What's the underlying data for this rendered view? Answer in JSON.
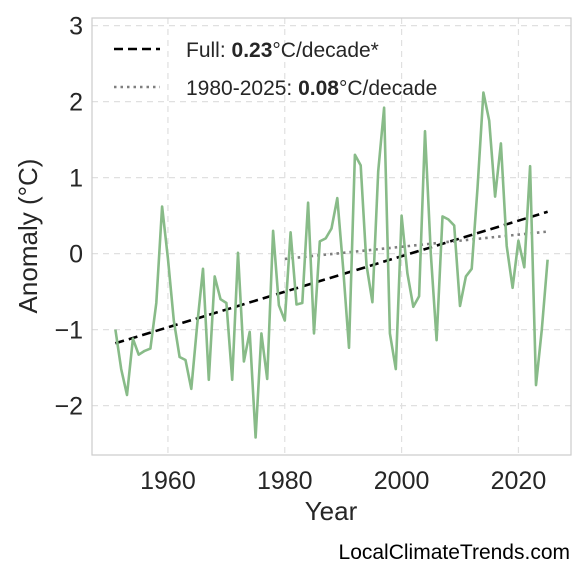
{
  "chart_data": {
    "type": "line",
    "xlabel": "Year",
    "ylabel": "Anomaly (°C)",
    "xlim": [
      1947,
      2029
    ],
    "ylim": [
      -2.65,
      3.1
    ],
    "xticks": [
      1960,
      1980,
      2000,
      2020
    ],
    "yticks": [
      3,
      2,
      1,
      0,
      -1,
      -2
    ],
    "ytick_labels": [
      "3",
      "2",
      "1",
      "0",
      "−1",
      "−2"
    ],
    "grid": true,
    "legend_position": "top-left",
    "legend": [
      {
        "prefix": "Full: ",
        "value": "0.23",
        "suffix": "°C/decade*",
        "style": "dashed",
        "color": "#000000"
      },
      {
        "prefix": "1980-2025: ",
        "value": "0.08",
        "suffix": "°C/decade",
        "style": "dotted",
        "color": "#7f7f7f"
      }
    ],
    "series": [
      {
        "color": "#88bb88",
        "x": [
          1951,
          1952,
          1953,
          1954,
          1955,
          1956,
          1957,
          1958,
          1959,
          1960,
          1961,
          1962,
          1963,
          1964,
          1965,
          1966,
          1967,
          1968,
          1969,
          1970,
          1971,
          1972,
          1973,
          1974,
          1975,
          1976,
          1977,
          1978,
          1979,
          1980,
          1981,
          1982,
          1983,
          1984,
          1985,
          1986,
          1987,
          1988,
          1989,
          1990,
          1991,
          1992,
          1993,
          1994,
          1995,
          1996,
          1997,
          1998,
          1999,
          2000,
          2001,
          2002,
          2003,
          2004,
          2005,
          2006,
          2007,
          2008,
          2009,
          2010,
          2011,
          2012,
          2013,
          2014,
          2015,
          2016,
          2017,
          2018,
          2019,
          2020,
          2021,
          2022,
          2023,
          2024,
          2025
        ],
        "values": [
          -1.0,
          -1.52,
          -1.86,
          -1.12,
          -1.33,
          -1.28,
          -1.25,
          -0.65,
          0.62,
          -0.06,
          -0.88,
          -1.36,
          -1.4,
          -1.78,
          -0.95,
          -0.2,
          -1.66,
          -0.3,
          -0.6,
          -0.65,
          -1.66,
          0.01,
          -1.42,
          -1.03,
          -2.42,
          -1.05,
          -1.65,
          0.3,
          -0.68,
          -0.88,
          0.28,
          -0.67,
          -0.65,
          0.67,
          -1.05,
          0.16,
          0.2,
          0.33,
          0.73,
          -0.2,
          -1.24,
          1.3,
          1.16,
          -0.15,
          -0.64,
          1.08,
          1.92,
          -1.05,
          -1.52,
          0.5,
          -0.26,
          -0.7,
          -0.56,
          1.61,
          0.0,
          -1.14,
          0.49,
          0.45,
          0.37,
          -0.69,
          -0.3,
          -0.2,
          0.86,
          2.12,
          1.75,
          0.75,
          1.45,
          0.1,
          -0.45,
          0.17,
          -0.18,
          1.15,
          -1.73,
          -1.0,
          -0.08
        ]
      }
    ],
    "trends": [
      {
        "x": [
          1951,
          2025
        ],
        "values": [
          -1.18,
          0.55
        ],
        "style": "dashed",
        "color": "#000000"
      },
      {
        "x": [
          1980,
          2025
        ],
        "values": [
          -0.07,
          0.29
        ],
        "style": "dotted",
        "color": "#7f7f7f"
      }
    ]
  },
  "source_text": "LocalClimateTrends.com"
}
